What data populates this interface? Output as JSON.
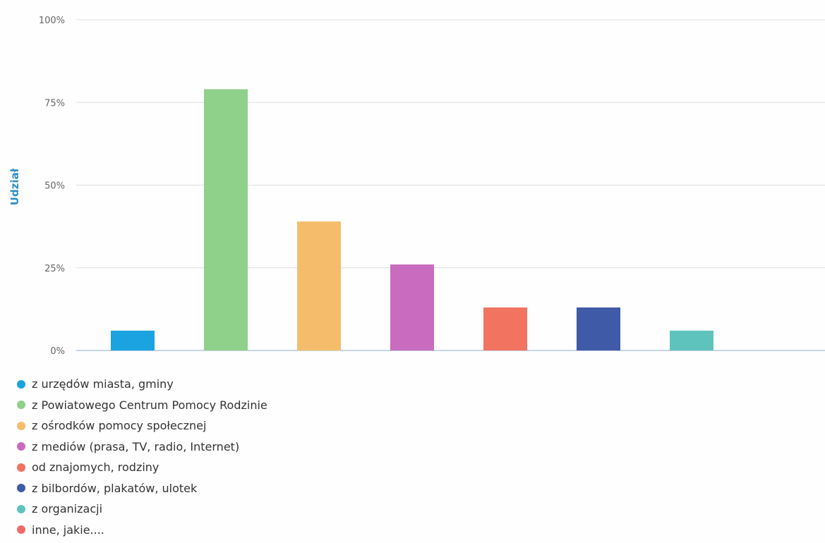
{
  "chart_data": {
    "type": "bar",
    "ylabel": "Udział",
    "xlabel": "",
    "ylim": [
      0,
      100
    ],
    "y_ticks": [
      "0%",
      "25%",
      "50%",
      "75%",
      "100%"
    ],
    "y_tick_values": [
      0,
      25,
      50,
      75,
      100
    ],
    "grid": true,
    "legend_position": "bottom-left",
    "categories": [
      "z urzędów miasta, gminy",
      "z Powiatowego Centrum Pomocy Rodzinie",
      "z ośrodków pomocy społecznej",
      "z mediów (prasa, TV, radio, Internet)",
      "od znajomych, rodziny",
      "z bilbordów, plakatów, ulotek",
      "z organizacji",
      "inne, jakie...."
    ],
    "values": [
      6,
      79,
      39,
      26,
      13,
      13,
      6,
      0
    ],
    "colors": [
      "#1aa3e0",
      "#8fd08a",
      "#f5bd6b",
      "#c96bbf",
      "#f2735f",
      "#3f5aa6",
      "#5fc3bd",
      "#f06a6a"
    ]
  }
}
